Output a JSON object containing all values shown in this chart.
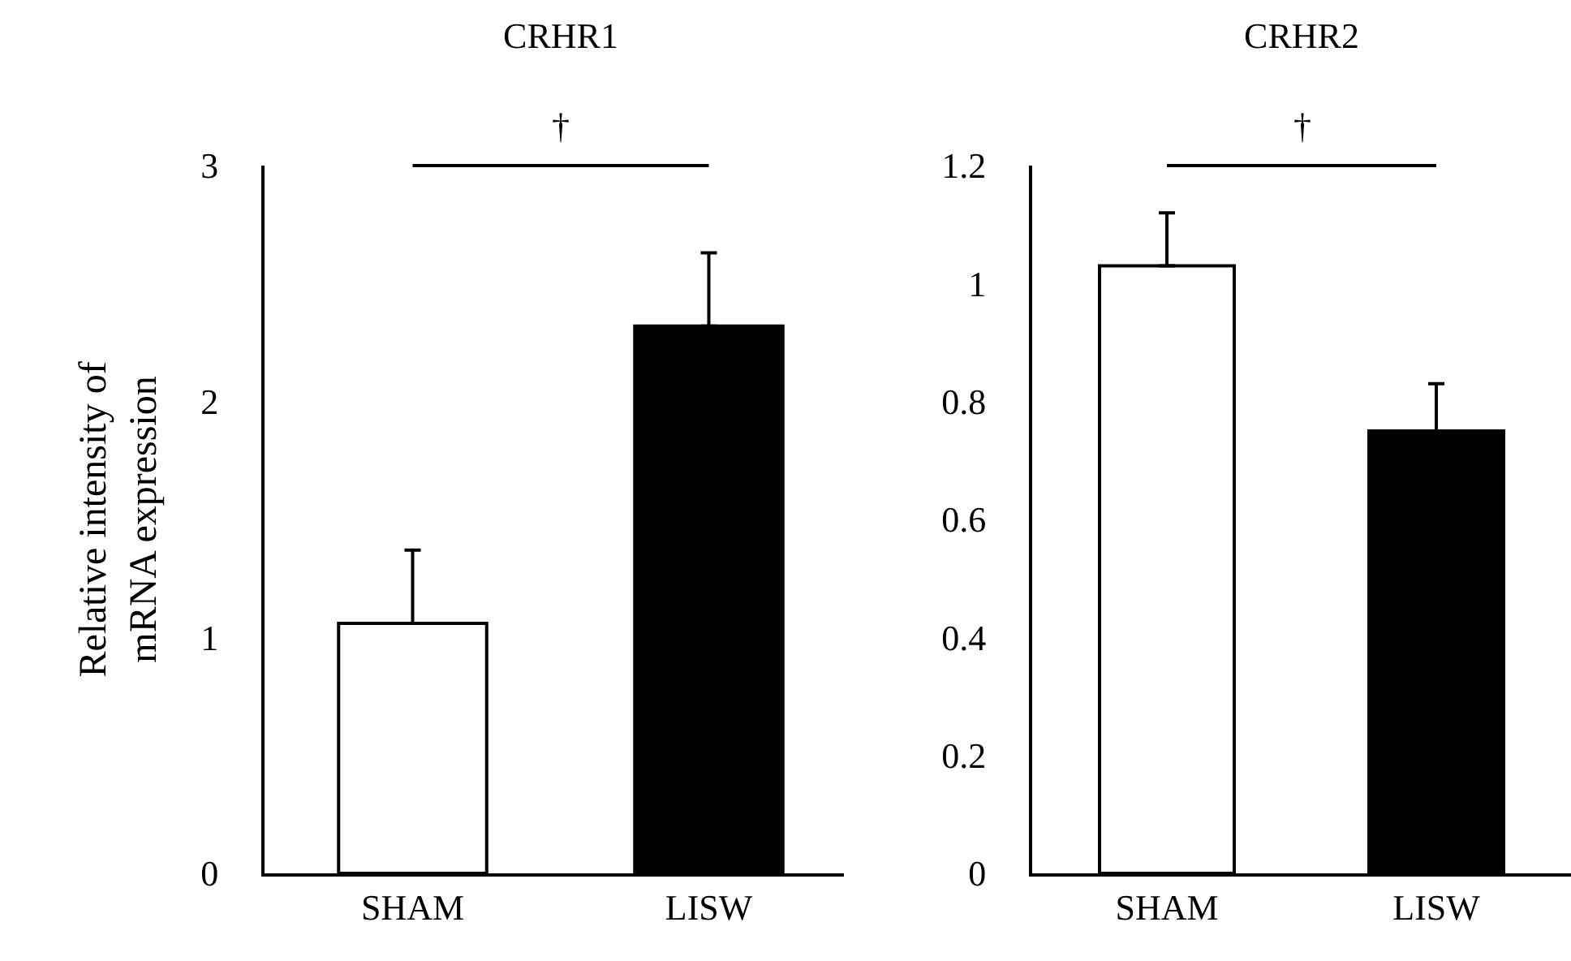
{
  "chart_data": [
    {
      "type": "bar",
      "title": "CRHR1",
      "ylabel": "Relative intensity of\nmRNA expression",
      "categories": [
        "SHAM",
        "LISW"
      ],
      "values": [
        1.06,
        2.32
      ],
      "colors": [
        "#ffffff",
        "#000000"
      ],
      "errors": [
        0.31,
        0.31
      ],
      "ylim": [
        0,
        3
      ],
      "yticks": [
        0,
        1,
        2,
        3
      ],
      "grid": false,
      "annotations": [
        "†"
      ]
    },
    {
      "type": "bar",
      "title": "CRHR2",
      "categories": [
        "SHAM",
        "LISW"
      ],
      "values": [
        1.03,
        0.75
      ],
      "colors": [
        "#ffffff",
        "#000000"
      ],
      "errors": [
        0.09,
        0.08
      ],
      "ylim": [
        0,
        1.2
      ],
      "yticks": [
        0,
        0.2,
        0.4,
        0.6,
        0.8,
        1,
        1.2
      ],
      "grid": false,
      "annotations": [
        "†"
      ]
    }
  ]
}
